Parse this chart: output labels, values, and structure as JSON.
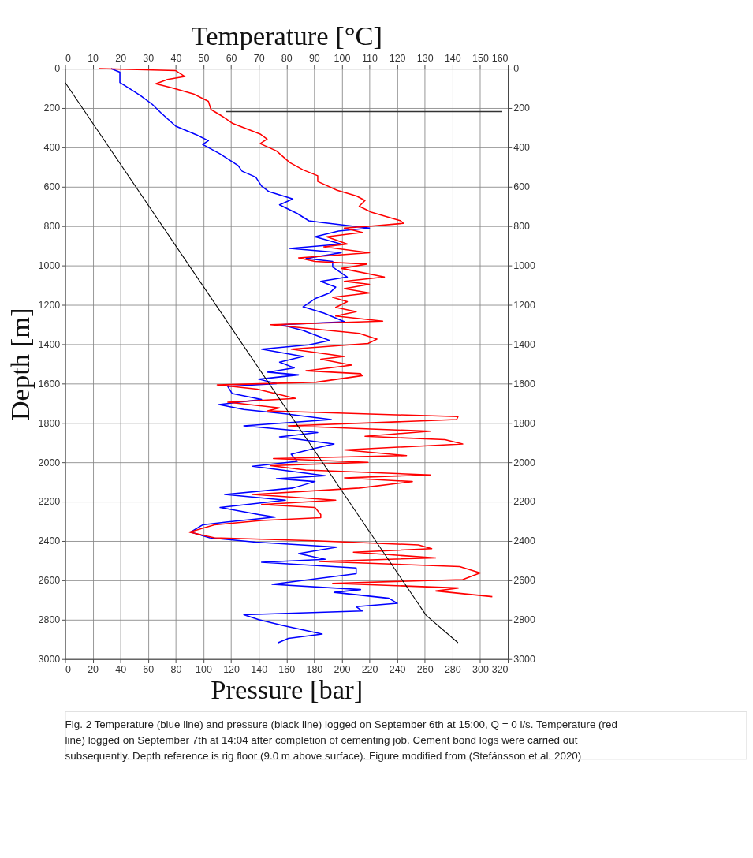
{
  "chart_data": {
    "type": "line",
    "xlabel": "Pressure [bar]",
    "x2label": "Temperature [°C]",
    "ylabel": "Depth [m]",
    "xlim": [
      0,
      320
    ],
    "xticks": [
      0,
      20,
      40,
      60,
      80,
      100,
      120,
      140,
      160,
      180,
      200,
      220,
      240,
      260,
      280,
      300,
      320
    ],
    "x2lim": [
      0,
      160
    ],
    "x2ticks": [
      0,
      10,
      20,
      30,
      40,
      50,
      60,
      70,
      80,
      90,
      100,
      110,
      120,
      130,
      140,
      150,
      160
    ],
    "ylim": [
      3000,
      0
    ],
    "yticks": [
      0,
      200,
      400,
      600,
      800,
      1000,
      1200,
      1400,
      1600,
      1800,
      2000,
      2200,
      2400,
      2600,
      2800,
      3000
    ],
    "y2lim": [
      3000,
      0
    ],
    "y2ticks": [
      0,
      200,
      400,
      600,
      800,
      1000,
      1200,
      1400,
      1600,
      1800,
      2000,
      2200,
      2400,
      2600,
      2800,
      3000
    ],
    "grid": true,
    "legend": false,
    "series": [
      {
        "color": "#0000ff",
        "axis": "x2",
        "x": [
          16.6,
          19.8,
          19.8,
          24,
          27.2,
          31.5,
          34.7,
          40,
          47.5,
          51.8,
          49.7,
          56,
          62.5,
          64,
          68.9,
          71,
          73.7,
          82.3,
          77.5,
          83.9,
          88.1,
          92.4,
          110,
          98.8,
          90.3,
          99.8,
          81.2,
          99.8,
          87.1,
          96.7,
          96.7,
          102,
          92.4,
          97.8,
          95.6,
          90.3,
          86,
          93.5,
          101,
          78,
          86,
          95.6,
          88.1,
          71,
          86,
          77.5,
          82.8,
          73.2,
          84.4,
          70,
          76.4,
          58.8,
          60.4,
          71,
          55.6,
          64.6,
          79.6,
          96.2,
          64.6,
          91.3,
          77.5,
          97.2,
          90.3,
          81.7,
          83.9,
          67.8,
          94,
          76.4,
          90.3,
          82.3,
          57.7,
          79.6,
          56,
          70,
          75.9,
          58.2,
          49.7,
          45.4,
          52.3,
          68.9,
          98.3,
          84.4,
          94,
          71,
          105.2,
          105.2,
          74.8,
          106.8,
          97.2,
          117,
          120.1,
          105.2,
          107.4,
          64.6,
          70,
          78.5,
          92.9,
          80.7,
          77
        ],
        "values": [
          0,
          18,
          70,
          107,
          136,
          181,
          225,
          292,
          336,
          366,
          385,
          433,
          492,
          521,
          551,
          596,
          625,
          662,
          692,
          736,
          773,
          781,
          810,
          825,
          854,
          891,
          913,
          935,
          964,
          979,
          1008,
          1059,
          1081,
          1110,
          1140,
          1169,
          1210,
          1242,
          1286,
          1301,
          1330,
          1381,
          1403,
          1425,
          1462,
          1491,
          1520,
          1542,
          1556,
          1578,
          1600,
          1615,
          1651,
          1681,
          1707,
          1732,
          1754,
          1783,
          1815,
          1849,
          1871,
          1907,
          1929,
          1959,
          1995,
          2020,
          2068,
          2083,
          2098,
          2131,
          2164,
          2193,
          2230,
          2266,
          2279,
          2304,
          2318,
          2355,
          2384,
          2406,
          2431,
          2464,
          2493,
          2508,
          2537,
          2566,
          2620,
          2647,
          2661,
          2691,
          2717,
          2734,
          2756,
          2775,
          2800,
          2829,
          2873,
          2895,
          2917
        ]
      },
      {
        "color": "#ff0000",
        "axis": "x2",
        "x": [
          12.3,
          40,
          43.3,
          37,
          32.8,
          39,
          46.5,
          51.8,
          52.7,
          56.6,
          60.4,
          70.5,
          73,
          70.5,
          76.4,
          81.2,
          86,
          91.3,
          91.3,
          98.3,
          105.3,
          108.4,
          106.3,
          110.6,
          121.3,
          122.3,
          110.6,
          100.9,
          107.4,
          94.6,
          102,
          93.5,
          110,
          84.4,
          90.3,
          109,
          99.9,
          115.4,
          100.9,
          110,
          100.9,
          110,
          96.7,
          102,
          97.8,
          105.2,
          97.8,
          114.8,
          74.3,
          90.3,
          106.3,
          112.7,
          109.5,
          81.7,
          100.9,
          92.4,
          103.6,
          87,
          106.8,
          107.4,
          90.8,
          55,
          69.4,
          83.3,
          58.8,
          77.5,
          73.2,
          142,
          141.5,
          80.7,
          132,
          108.4,
          137.3,
          143.7,
          101,
          123.4,
          75.3,
          109.5,
          74.3,
          87,
          132,
          101,
          125.5,
          106.3,
          67.8,
          97.8,
          71,
          90.3,
          92.4,
          92.4,
          71,
          54,
          44.9,
          54,
          90.3,
          127.7,
          132.5,
          104.2,
          134,
          91.9,
          142.6,
          150,
          143.7,
          96.7,
          142.1,
          134,
          154.4
        ],
        "values": [
          0,
          10,
          40,
          55,
          77,
          99,
          129,
          166,
          207,
          240,
          277,
          332,
          358,
          381,
          418,
          477,
          514,
          544,
          573,
          618,
          647,
          670,
          699,
          729,
          773,
          786,
          800,
          810,
          832,
          854,
          891,
          905,
          935,
          961,
          979,
          993,
          1015,
          1059,
          1081,
          1096,
          1118,
          1140,
          1162,
          1184,
          1213,
          1235,
          1257,
          1283,
          1301,
          1323,
          1345,
          1374,
          1396,
          1425,
          1462,
          1476,
          1506,
          1535,
          1550,
          1560,
          1593,
          1607,
          1629,
          1676,
          1695,
          1724,
          1739,
          1768,
          1783,
          1815,
          1842,
          1868,
          1885,
          1907,
          1937,
          1966,
          1981,
          2000,
          2017,
          2039,
          2064,
          2079,
          2098,
          2131,
          2164,
          2193,
          2215,
          2230,
          2266,
          2282,
          2296,
          2318,
          2355,
          2384,
          2399,
          2420,
          2439,
          2457,
          2486,
          2504,
          2530,
          2562,
          2596,
          2615,
          2639,
          2654,
          2683
        ]
      },
      {
        "color": "#333333",
        "axis": "x2",
        "x": [
          58,
          158
        ],
        "values": [
          218,
          218
        ]
      },
      {
        "color": "#000000",
        "x": [
          0,
          261,
          284
        ],
        "values": [
          70,
          2778,
          2917
        ]
      }
    ],
    "annotations": [
      "Fig. 2 Temperature (blue line) and pressure (black line) logged on September 6th at 15:00, Q = 0 l/s. Temperature (red line) logged on September 7th at 14:04 after completion of cementing job. Cement bond logs were carried out subsequently. Depth reference is rig floor (9.0 m above surface). Figure modified from (Stefánsson et al. 2020)"
    ]
  }
}
